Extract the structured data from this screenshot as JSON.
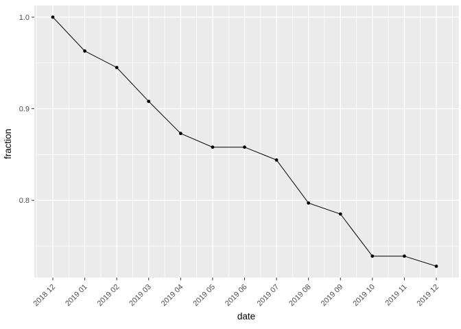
{
  "chart_data": {
    "type": "line",
    "title": "",
    "xlabel": "date",
    "ylabel": "fraction",
    "categories": [
      "2018 12",
      "2019 01",
      "2019 02",
      "2019 03",
      "2019 04",
      "2019 05",
      "2019 06",
      "2019 07",
      "2019 08",
      "2019 09",
      "2019 10",
      "2019 11",
      "2019 12"
    ],
    "values": [
      1.0,
      0.963,
      0.945,
      0.908,
      0.873,
      0.858,
      0.858,
      0.844,
      0.797,
      0.785,
      0.739,
      0.739,
      0.728
    ],
    "y_major_ticks": [
      {
        "value": 1.0,
        "label": "1.0"
      },
      {
        "value": 0.9,
        "label": "0.9"
      },
      {
        "value": 0.8,
        "label": "0.8"
      }
    ],
    "y_minor_ticks": [
      0.95,
      0.85,
      0.75
    ],
    "ylim": [
      0.7156,
      1.0127
    ],
    "grid": "major-and-minor",
    "legend": "none",
    "marker": "point",
    "style": {
      "panel_bg": "#ebebeb",
      "grid_color": "#ffffff",
      "line_color": "#000000",
      "point_color": "#000000",
      "tick_mark_color": "#333333",
      "tick_label_color": "#4d4d4d",
      "axis_title_color": "#000000",
      "outer_bg": "#ffffff"
    }
  }
}
